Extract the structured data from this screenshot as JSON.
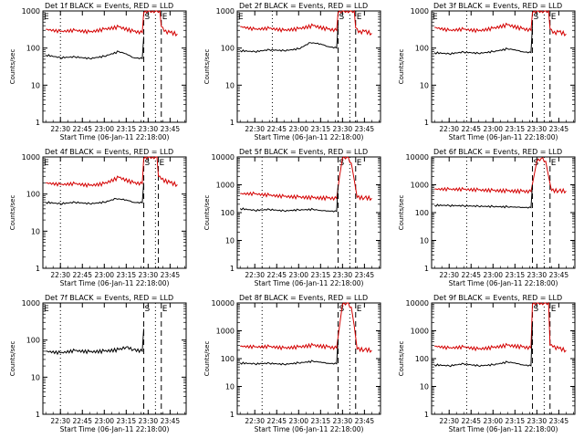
{
  "colors": {
    "events": "#000000",
    "lld": "#d40000",
    "axes": "#000000",
    "markers": "#000000"
  },
  "chart_data": [
    {
      "type": "line",
      "title": "Det 1f BLACK = Events, RED = LLD",
      "xlabel": "Start Time (06-Jan-11 22:18:00)",
      "ylabel": "Counts/sec",
      "yscale": "log",
      "ylim": [
        1,
        1000
      ],
      "yticks": [
        "1",
        "10",
        "100",
        "1000"
      ],
      "xlim": [
        "22:18",
        "23:56"
      ],
      "xticks": [
        "22:30",
        "22:45",
        "23:00",
        "23:15",
        "23:30",
        "23:45"
      ],
      "markers": [
        {
          "label": "E",
          "time": "22:18",
          "style": "none"
        },
        {
          "label": "",
          "time": "22:30",
          "style": "dotted"
        },
        {
          "label": "S",
          "time": "23:27",
          "style": "dashed"
        },
        {
          "label": "E",
          "time": "23:39",
          "style": "dashed"
        },
        {
          "label": "",
          "time": "23:35",
          "style": "dotted"
        }
      ],
      "series": [
        {
          "name": "LLD",
          "color": "#d40000",
          "x": [
            "22:20",
            "22:30",
            "22:40",
            "22:50",
            "23:00",
            "23:10",
            "23:20",
            "23:26",
            "23:27",
            "23:30",
            "23:35",
            "23:38",
            "23:39",
            "23:41",
            "23:45",
            "23:50"
          ],
          "y": [
            320,
            280,
            300,
            270,
            320,
            370,
            280,
            260,
            900,
            1000,
            1000,
            1000,
            380,
            280,
            260,
            240
          ]
        },
        {
          "name": "Events",
          "color": "#000000",
          "x": [
            "22:20",
            "22:30",
            "22:40",
            "22:50",
            "23:00",
            "23:10",
            "23:15",
            "23:20",
            "23:26",
            "23:27"
          ],
          "y": [
            65,
            55,
            58,
            52,
            60,
            80,
            70,
            55,
            52,
            200
          ]
        }
      ]
    },
    {
      "type": "line",
      "title": "Det 2f BLACK = Events, RED = LLD",
      "xlabel": "Start Time (06-Jan-11 22:18:00)",
      "ylabel": "Counts/sec",
      "yscale": "log",
      "ylim": [
        1,
        1000
      ],
      "yticks": [
        "1",
        "10",
        "100",
        "1000"
      ],
      "xlim": [
        "22:18",
        "23:56"
      ],
      "xticks": [
        "22:30",
        "22:45",
        "23:00",
        "23:15",
        "23:30",
        "23:45"
      ],
      "markers": [
        {
          "label": "E",
          "time": "22:18",
          "style": "none"
        },
        {
          "label": "",
          "time": "22:42",
          "style": "dotted"
        },
        {
          "label": "S",
          "time": "23:27",
          "style": "dashed"
        },
        {
          "label": "E",
          "time": "23:39",
          "style": "dashed"
        },
        {
          "label": "",
          "time": "23:35",
          "style": "dotted"
        }
      ],
      "series": [
        {
          "name": "LLD",
          "color": "#d40000",
          "x": [
            "22:20",
            "22:30",
            "22:40",
            "22:50",
            "23:00",
            "23:10",
            "23:20",
            "23:26",
            "23:27",
            "23:30",
            "23:35",
            "23:38",
            "23:39",
            "23:41",
            "23:45",
            "23:50"
          ],
          "y": [
            380,
            320,
            340,
            300,
            330,
            400,
            320,
            300,
            900,
            1000,
            1000,
            1000,
            350,
            260,
            280,
            250
          ]
        },
        {
          "name": "Events",
          "color": "#000000",
          "x": [
            "22:20",
            "22:30",
            "22:40",
            "22:50",
            "23:00",
            "23:08",
            "23:15",
            "23:20",
            "23:26",
            "23:27"
          ],
          "y": [
            85,
            80,
            90,
            85,
            95,
            140,
            130,
            110,
            100,
            400
          ]
        }
      ]
    },
    {
      "type": "line",
      "title": "Det 3f BLACK = Events, RED = LLD",
      "xlabel": "Start Time (06-Jan-11 22:18:00)",
      "ylabel": "Counts/sec",
      "yscale": "log",
      "ylim": [
        1,
        1000
      ],
      "yticks": [
        "1",
        "10",
        "100",
        "1000"
      ],
      "xlim": [
        "22:18",
        "23:56"
      ],
      "xticks": [
        "22:30",
        "22:45",
        "23:00",
        "23:15",
        "23:30",
        "23:45"
      ],
      "markers": [
        {
          "label": "E",
          "time": "22:18",
          "style": "none"
        },
        {
          "label": "",
          "time": "22:42",
          "style": "dotted"
        },
        {
          "label": "S",
          "time": "23:27",
          "style": "dashed"
        },
        {
          "label": "E",
          "time": "23:39",
          "style": "dashed"
        },
        {
          "label": "",
          "time": "23:35",
          "style": "dotted"
        }
      ],
      "series": [
        {
          "name": "LLD",
          "color": "#d40000",
          "x": [
            "22:20",
            "22:30",
            "22:40",
            "22:50",
            "23:00",
            "23:10",
            "23:20",
            "23:26",
            "23:27",
            "23:30",
            "23:35",
            "23:38",
            "23:39",
            "23:41",
            "23:45",
            "23:50"
          ],
          "y": [
            360,
            300,
            320,
            290,
            340,
            420,
            330,
            300,
            900,
            1000,
            1000,
            1000,
            330,
            250,
            270,
            240
          ]
        },
        {
          "name": "Events",
          "color": "#000000",
          "x": [
            "22:20",
            "22:30",
            "22:40",
            "22:50",
            "23:00",
            "23:10",
            "23:15",
            "23:20",
            "23:26",
            "23:27"
          ],
          "y": [
            75,
            70,
            78,
            72,
            80,
            95,
            90,
            80,
            75,
            400
          ]
        }
      ]
    },
    {
      "type": "line",
      "title": "Det 4f BLACK = Events, RED = LLD",
      "xlabel": "Start Time (06-Jan-11 22:18:00)",
      "ylabel": "Counts/sec",
      "yscale": "log",
      "ylim": [
        1,
        1000
      ],
      "yticks": [
        "1",
        "10",
        "100",
        "1000"
      ],
      "xlim": [
        "22:18",
        "23:56"
      ],
      "xticks": [
        "22:30",
        "22:45",
        "23:00",
        "23:15",
        "23:30",
        "23:45"
      ],
      "markers": [
        {
          "label": "E",
          "time": "22:18",
          "style": "none"
        },
        {
          "label": "",
          "time": "22:30",
          "style": "dotted"
        },
        {
          "label": "S",
          "time": "23:27",
          "style": "dashed"
        },
        {
          "label": "E",
          "time": "23:37",
          "style": "dashed"
        },
        {
          "label": "",
          "time": "23:35",
          "style": "dotted"
        }
      ],
      "series": [
        {
          "name": "LLD",
          "color": "#d40000",
          "x": [
            "22:20",
            "22:30",
            "22:40",
            "22:50",
            "23:00",
            "23:10",
            "23:20",
            "23:26",
            "23:27",
            "23:30",
            "23:35",
            "23:36",
            "23:37",
            "23:39",
            "23:45",
            "23:50"
          ],
          "y": [
            200,
            180,
            190,
            170,
            190,
            280,
            200,
            190,
            900,
            1000,
            1000,
            1000,
            300,
            250,
            200,
            180
          ]
        },
        {
          "name": "Events",
          "color": "#000000",
          "x": [
            "22:20",
            "22:30",
            "22:40",
            "22:50",
            "23:00",
            "23:08",
            "23:15",
            "23:20",
            "23:26",
            "23:27"
          ],
          "y": [
            60,
            55,
            60,
            55,
            60,
            75,
            70,
            60,
            58,
            200
          ]
        }
      ]
    },
    {
      "type": "line",
      "title": "Det 5f BLACK = Events, RED = LLD",
      "xlabel": "Start Time (06-Jan-11 22:18:00)",
      "ylabel": "Counts/sec",
      "yscale": "log",
      "ylim": [
        1,
        10000
      ],
      "yticks": [
        "1",
        "10",
        "100",
        "1000",
        "10000"
      ],
      "xlim": [
        "22:18",
        "23:56"
      ],
      "xticks": [
        "22:30",
        "22:45",
        "23:00",
        "23:15",
        "23:30",
        "23:45"
      ],
      "markers": [
        {
          "label": "",
          "time": "22:35",
          "style": "dotted"
        },
        {
          "label": "S",
          "time": "23:27",
          "style": "dashed"
        },
        {
          "label": "E",
          "time": "23:39",
          "style": "dashed"
        },
        {
          "label": "",
          "time": "23:35",
          "style": "dotted"
        }
      ],
      "series": [
        {
          "name": "LLD",
          "color": "#d40000",
          "x": [
            "22:20",
            "22:30",
            "22:40",
            "22:50",
            "23:00",
            "23:10",
            "23:20",
            "23:26",
            "23:28",
            "23:30",
            "23:33",
            "23:36",
            "23:38",
            "23:40",
            "23:45",
            "23:50"
          ],
          "y": [
            480,
            470,
            420,
            380,
            360,
            340,
            330,
            320,
            2000,
            9000,
            10000,
            6000,
            1500,
            350,
            340,
            330
          ]
        },
        {
          "name": "Events",
          "color": "#000000",
          "x": [
            "22:20",
            "22:30",
            "22:40",
            "22:50",
            "23:00",
            "23:10",
            "23:15",
            "23:20",
            "23:26",
            "23:27"
          ],
          "y": [
            140,
            120,
            130,
            115,
            125,
            130,
            120,
            115,
            110,
            1000
          ]
        }
      ]
    },
    {
      "type": "line",
      "title": "Det 6f BLACK = Events, RED = LLD",
      "xlabel": "Start Time (06-Jan-11 22:18:00)",
      "ylabel": "Counts/sec",
      "yscale": "log",
      "ylim": [
        1,
        10000
      ],
      "yticks": [
        "1",
        "10",
        "100",
        "1000",
        "10000"
      ],
      "xlim": [
        "22:18",
        "23:56"
      ],
      "xticks": [
        "22:30",
        "22:45",
        "23:00",
        "23:15",
        "23:30",
        "23:45"
      ],
      "markers": [
        {
          "label": "",
          "time": "22:42",
          "style": "dotted"
        },
        {
          "label": "S",
          "time": "23:27",
          "style": "dashed"
        },
        {
          "label": "E",
          "time": "23:39",
          "style": "dashed"
        },
        {
          "label": "",
          "time": "23:35",
          "style": "dotted"
        }
      ],
      "series": [
        {
          "name": "LLD",
          "color": "#d40000",
          "x": [
            "22:20",
            "22:30",
            "22:40",
            "22:50",
            "23:00",
            "23:10",
            "23:20",
            "23:26",
            "23:28",
            "23:30",
            "23:33",
            "23:36",
            "23:38",
            "23:40",
            "23:45",
            "23:50"
          ],
          "y": [
            700,
            690,
            680,
            650,
            620,
            600,
            580,
            570,
            2000,
            7000,
            9000,
            7000,
            2000,
            620,
            610,
            600
          ]
        },
        {
          "name": "Events",
          "color": "#000000",
          "x": [
            "22:20",
            "22:30",
            "22:40",
            "22:50",
            "23:00",
            "23:10",
            "23:15",
            "23:20",
            "23:26",
            "23:27"
          ],
          "y": [
            185,
            180,
            175,
            170,
            165,
            160,
            160,
            155,
            150,
            1000
          ]
        }
      ]
    },
    {
      "type": "line",
      "title": "Det 7f BLACK = Events, RED = LLD",
      "xlabel": "Start Time (06-Jan-11 22:18:00)",
      "ylabel": "Counts/sec",
      "yscale": "log",
      "ylim": [
        1,
        1000
      ],
      "yticks": [
        "1",
        "10",
        "100",
        "1000"
      ],
      "xlim": [
        "22:18",
        "23:56"
      ],
      "xticks": [
        "22:30",
        "22:45",
        "23:00",
        "23:15",
        "23:30",
        "23:45"
      ],
      "markers": [
        {
          "label": "E",
          "time": "22:18",
          "style": "none"
        },
        {
          "label": "",
          "time": "22:30",
          "style": "dotted"
        },
        {
          "label": "S",
          "time": "23:27",
          "style": "dashed"
        },
        {
          "label": "E",
          "time": "23:39",
          "style": "dashed"
        },
        {
          "label": "",
          "time": "23:35",
          "style": "dotted"
        }
      ],
      "series": [
        {
          "name": "Events",
          "color": "#000000",
          "x": [
            "22:20",
            "22:30",
            "22:40",
            "22:50",
            "23:00",
            "23:10",
            "23:15",
            "23:20",
            "23:26",
            "23:27"
          ],
          "y": [
            50,
            45,
            52,
            48,
            50,
            55,
            65,
            55,
            50,
            200
          ]
        }
      ]
    },
    {
      "type": "line",
      "title": "Det 8f BLACK = Events, RED = LLD",
      "xlabel": "Start Time (06-Jan-11 22:18:00)",
      "ylabel": "Counts/sec",
      "yscale": "log",
      "ylim": [
        1,
        10000
      ],
      "yticks": [
        "1",
        "10",
        "100",
        "1000",
        "10000"
      ],
      "xlim": [
        "22:18",
        "23:56"
      ],
      "xticks": [
        "22:30",
        "22:45",
        "23:00",
        "23:15",
        "23:30",
        "23:45"
      ],
      "markers": [
        {
          "label": "",
          "time": "22:35",
          "style": "dotted"
        },
        {
          "label": "S",
          "time": "23:27",
          "style": "dashed"
        },
        {
          "label": "E",
          "time": "23:39",
          "style": "dashed"
        },
        {
          "label": "",
          "time": "23:35",
          "style": "dotted"
        }
      ],
      "series": [
        {
          "name": "LLD",
          "color": "#d40000",
          "x": [
            "22:20",
            "22:30",
            "22:40",
            "22:50",
            "23:00",
            "23:10",
            "23:20",
            "23:26",
            "23:28",
            "23:30",
            "23:33",
            "23:36",
            "23:38",
            "23:40",
            "23:45",
            "23:50"
          ],
          "y": [
            280,
            260,
            270,
            240,
            260,
            300,
            260,
            240,
            1500,
            9000,
            10000,
            7000,
            1500,
            220,
            210,
            200
          ]
        },
        {
          "name": "Events",
          "color": "#000000",
          "x": [
            "22:20",
            "22:30",
            "22:40",
            "22:50",
            "23:00",
            "23:10",
            "23:15",
            "23:20",
            "23:26",
            "23:27"
          ],
          "y": [
            70,
            65,
            68,
            62,
            70,
            80,
            75,
            68,
            65,
            500
          ]
        }
      ]
    },
    {
      "type": "line",
      "title": "Det 9f BLACK = Events, RED = LLD",
      "xlabel": "Start Time (06-Jan-11 22:18:00)",
      "ylabel": "Counts/sec",
      "yscale": "log",
      "ylim": [
        1,
        10000
      ],
      "yticks": [
        "1",
        "10",
        "100",
        "1000",
        "10000"
      ],
      "xlim": [
        "22:18",
        "23:56"
      ],
      "xticks": [
        "22:30",
        "22:45",
        "23:00",
        "23:15",
        "23:30",
        "23:45"
      ],
      "markers": [
        {
          "label": "",
          "time": "22:42",
          "style": "dotted"
        },
        {
          "label": "S",
          "time": "23:27",
          "style": "dashed"
        },
        {
          "label": "E",
          "time": "23:39",
          "style": "dashed"
        },
        {
          "label": "",
          "time": "23:35",
          "style": "dotted"
        }
      ],
      "series": [
        {
          "name": "LLD",
          "color": "#d40000",
          "x": [
            "22:20",
            "22:30",
            "22:40",
            "22:50",
            "23:00",
            "23:10",
            "23:20",
            "23:26",
            "23:27",
            "23:30",
            "23:35",
            "23:38",
            "23:39",
            "23:41",
            "23:45",
            "23:50"
          ],
          "y": [
            280,
            240,
            260,
            220,
            250,
            300,
            260,
            240,
            9000,
            10000,
            10000,
            10000,
            300,
            260,
            230,
            200
          ]
        },
        {
          "name": "Events",
          "color": "#000000",
          "x": [
            "22:20",
            "22:30",
            "22:40",
            "22:50",
            "23:00",
            "23:10",
            "23:15",
            "23:20",
            "23:26",
            "23:27"
          ],
          "y": [
            60,
            55,
            65,
            55,
            60,
            75,
            70,
            60,
            55,
            2000
          ]
        }
      ]
    }
  ]
}
